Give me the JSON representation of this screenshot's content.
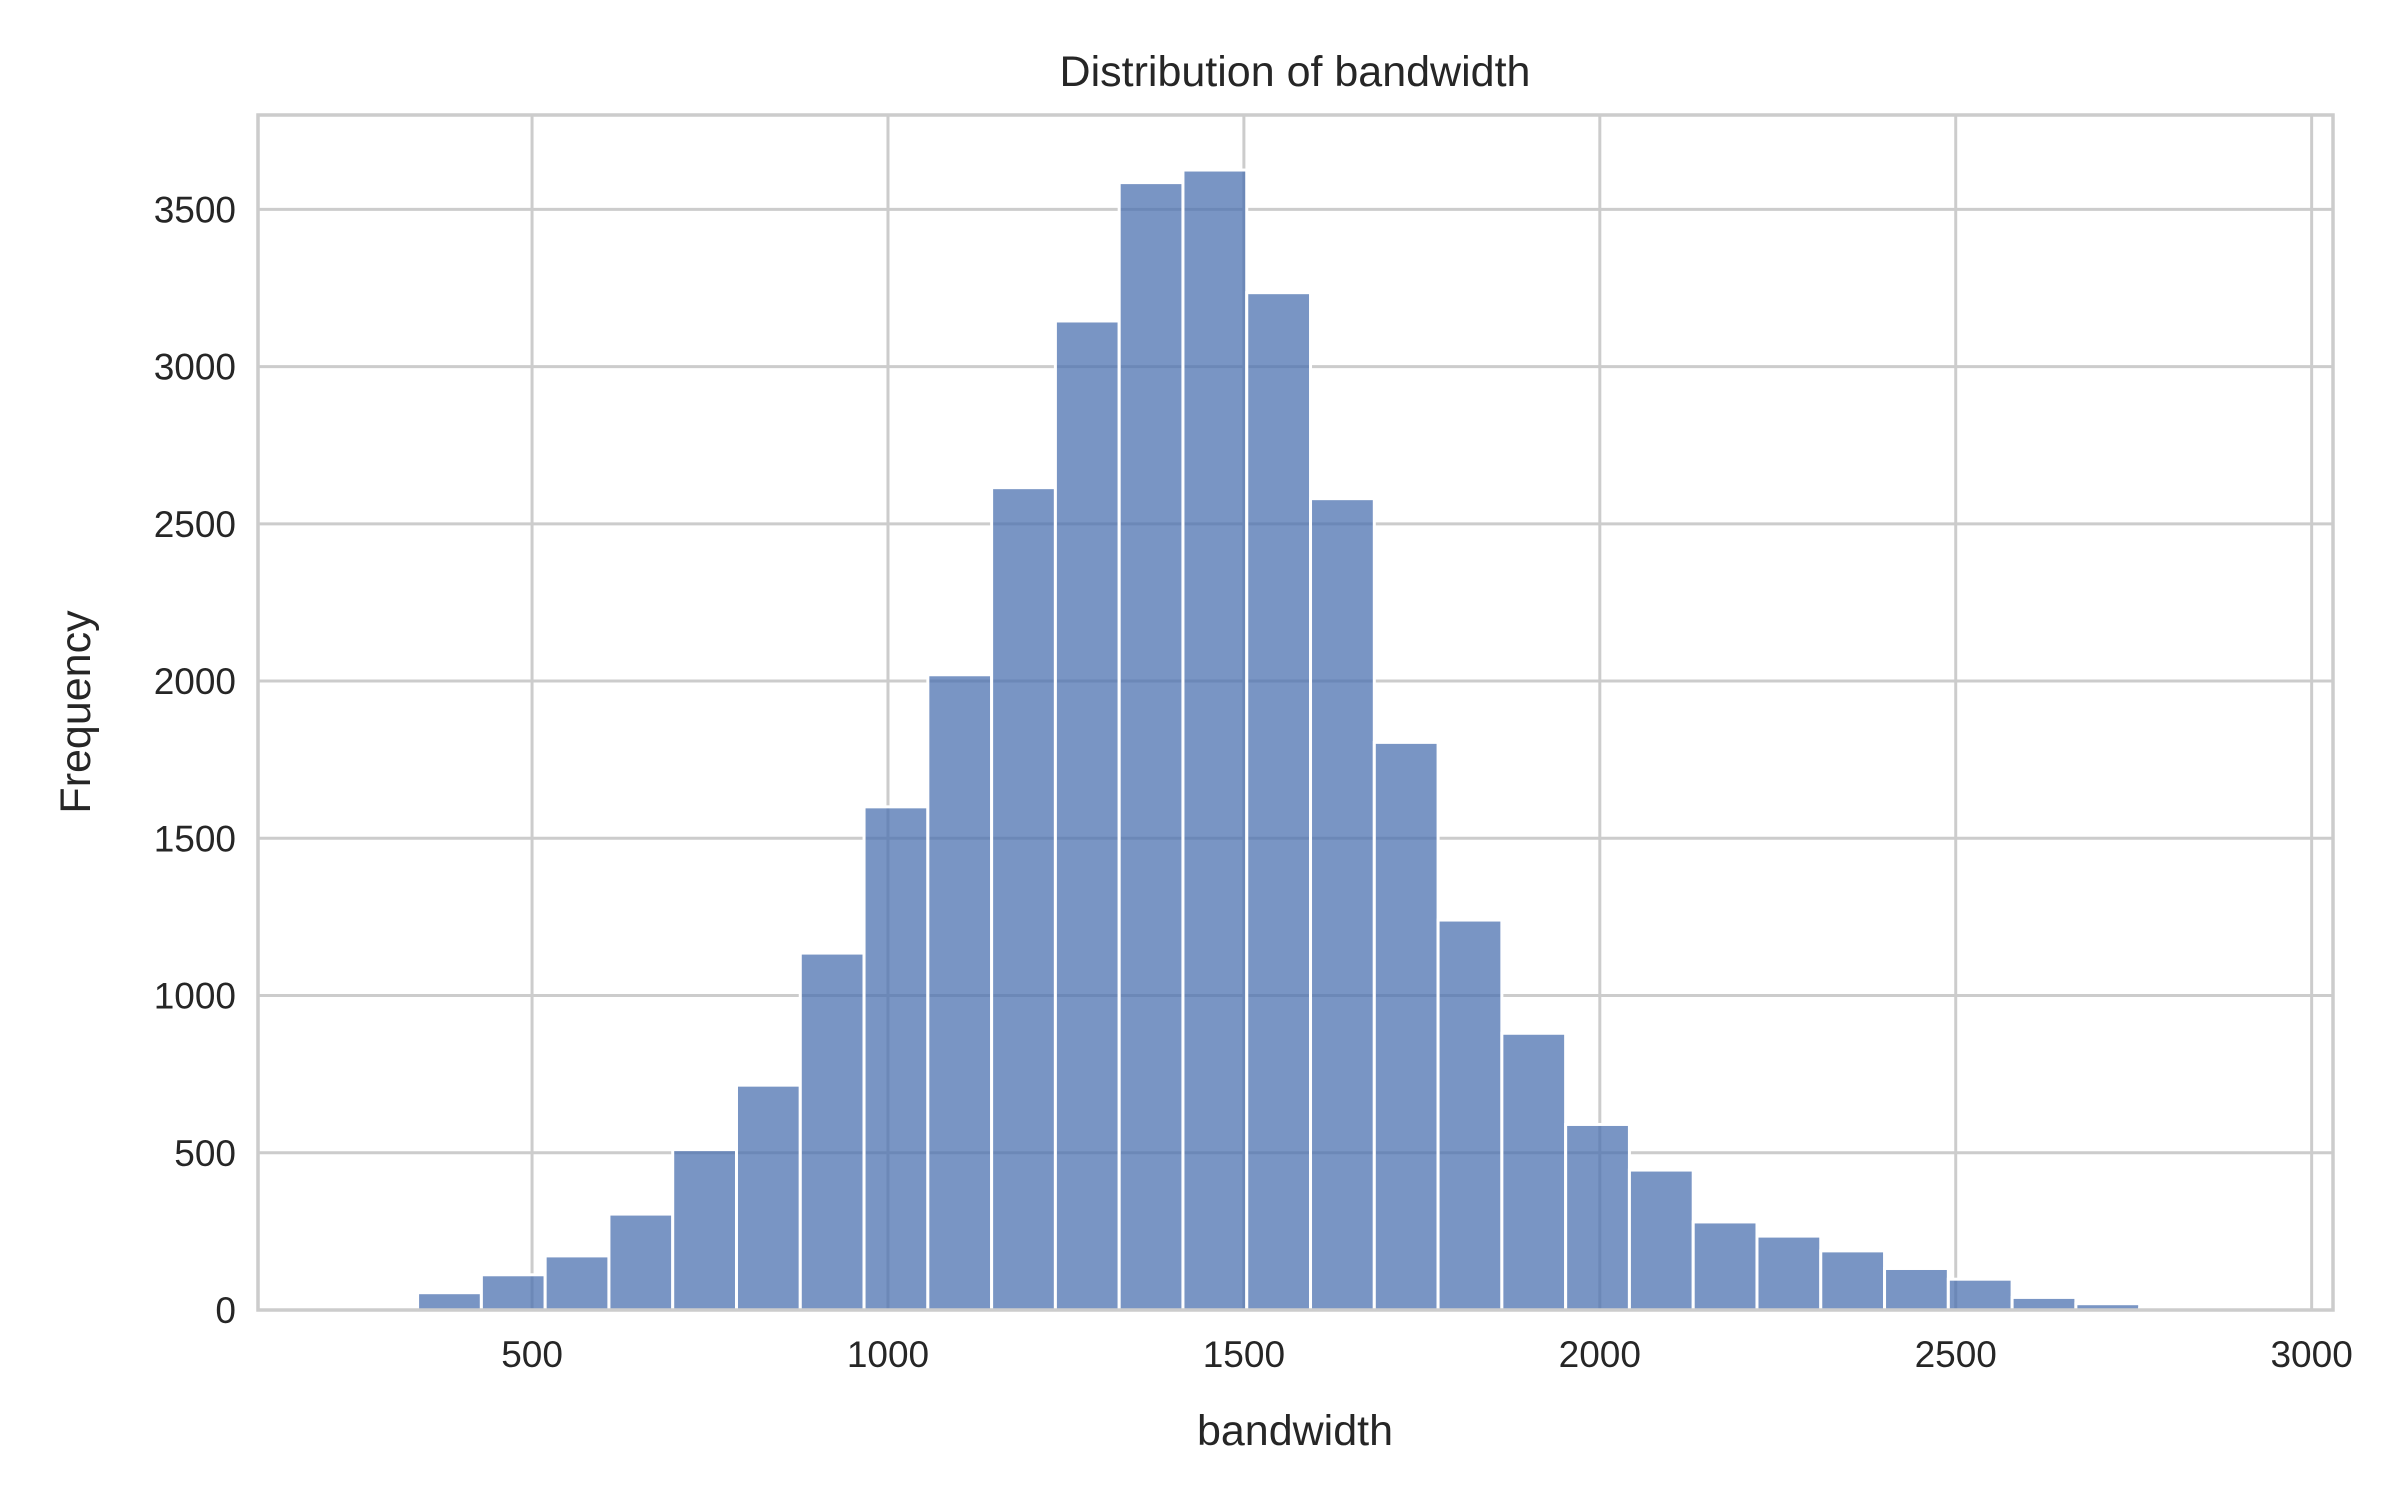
{
  "chart_data": {
    "type": "bar",
    "title": "Distribution of bandwidth",
    "xlabel": "bandwidth",
    "ylabel": "Frequency",
    "xlim": [
      115,
      3030
    ],
    "ylim": [
      0,
      3800
    ],
    "xticks": [
      500,
      1000,
      1500,
      2000,
      2500,
      3000
    ],
    "yticks": [
      0,
      500,
      1000,
      1500,
      2000,
      2500,
      3000,
      3500
    ],
    "grid": true,
    "bar_color": "#4c72b0",
    "bins": [
      {
        "x0": 160.0,
        "x1": 249.6,
        "count": 3
      },
      {
        "x0": 249.6,
        "x1": 339.2,
        "count": 7
      },
      {
        "x0": 339.2,
        "x1": 428.8,
        "count": 55
      },
      {
        "x0": 428.8,
        "x1": 518.4,
        "count": 112
      },
      {
        "x0": 518.4,
        "x1": 608.0,
        "count": 172
      },
      {
        "x0": 608.0,
        "x1": 697.6,
        "count": 305
      },
      {
        "x0": 697.6,
        "x1": 787.2,
        "count": 510
      },
      {
        "x0": 787.2,
        "x1": 876.8,
        "count": 715
      },
      {
        "x0": 876.8,
        "x1": 966.4,
        "count": 1135
      },
      {
        "x0": 966.4,
        "x1": 1056.0,
        "count": 1600
      },
      {
        "x0": 1056.0,
        "x1": 1145.6,
        "count": 2020
      },
      {
        "x0": 1145.6,
        "x1": 1235.2,
        "count": 2615
      },
      {
        "x0": 1235.2,
        "x1": 1324.8,
        "count": 3145
      },
      {
        "x0": 1324.8,
        "x1": 1414.4,
        "count": 3585
      },
      {
        "x0": 1414.4,
        "x1": 1504.0,
        "count": 3625
      },
      {
        "x0": 1504.0,
        "x1": 1593.6,
        "count": 3235
      },
      {
        "x0": 1593.6,
        "x1": 1683.2,
        "count": 2580
      },
      {
        "x0": 1683.2,
        "x1": 1772.8,
        "count": 1805
      },
      {
        "x0": 1772.8,
        "x1": 1862.4,
        "count": 1240
      },
      {
        "x0": 1862.4,
        "x1": 1952.0,
        "count": 880
      },
      {
        "x0": 1952.0,
        "x1": 2041.6,
        "count": 590
      },
      {
        "x0": 2041.6,
        "x1": 2131.2,
        "count": 445
      },
      {
        "x0": 2131.2,
        "x1": 2220.8,
        "count": 280
      },
      {
        "x0": 2220.8,
        "x1": 2310.4,
        "count": 235
      },
      {
        "x0": 2310.4,
        "x1": 2400.0,
        "count": 188
      },
      {
        "x0": 2400.0,
        "x1": 2489.6,
        "count": 132
      },
      {
        "x0": 2489.6,
        "x1": 2579.2,
        "count": 98
      },
      {
        "x0": 2579.2,
        "x1": 2668.8,
        "count": 40
      },
      {
        "x0": 2668.8,
        "x1": 2758.4,
        "count": 20
      },
      {
        "x0": 2758.4,
        "x1": 2848.0,
        "count": 4
      },
      {
        "x0": 2848.0,
        "x1": 2937.6,
        "count": 2
      }
    ]
  }
}
